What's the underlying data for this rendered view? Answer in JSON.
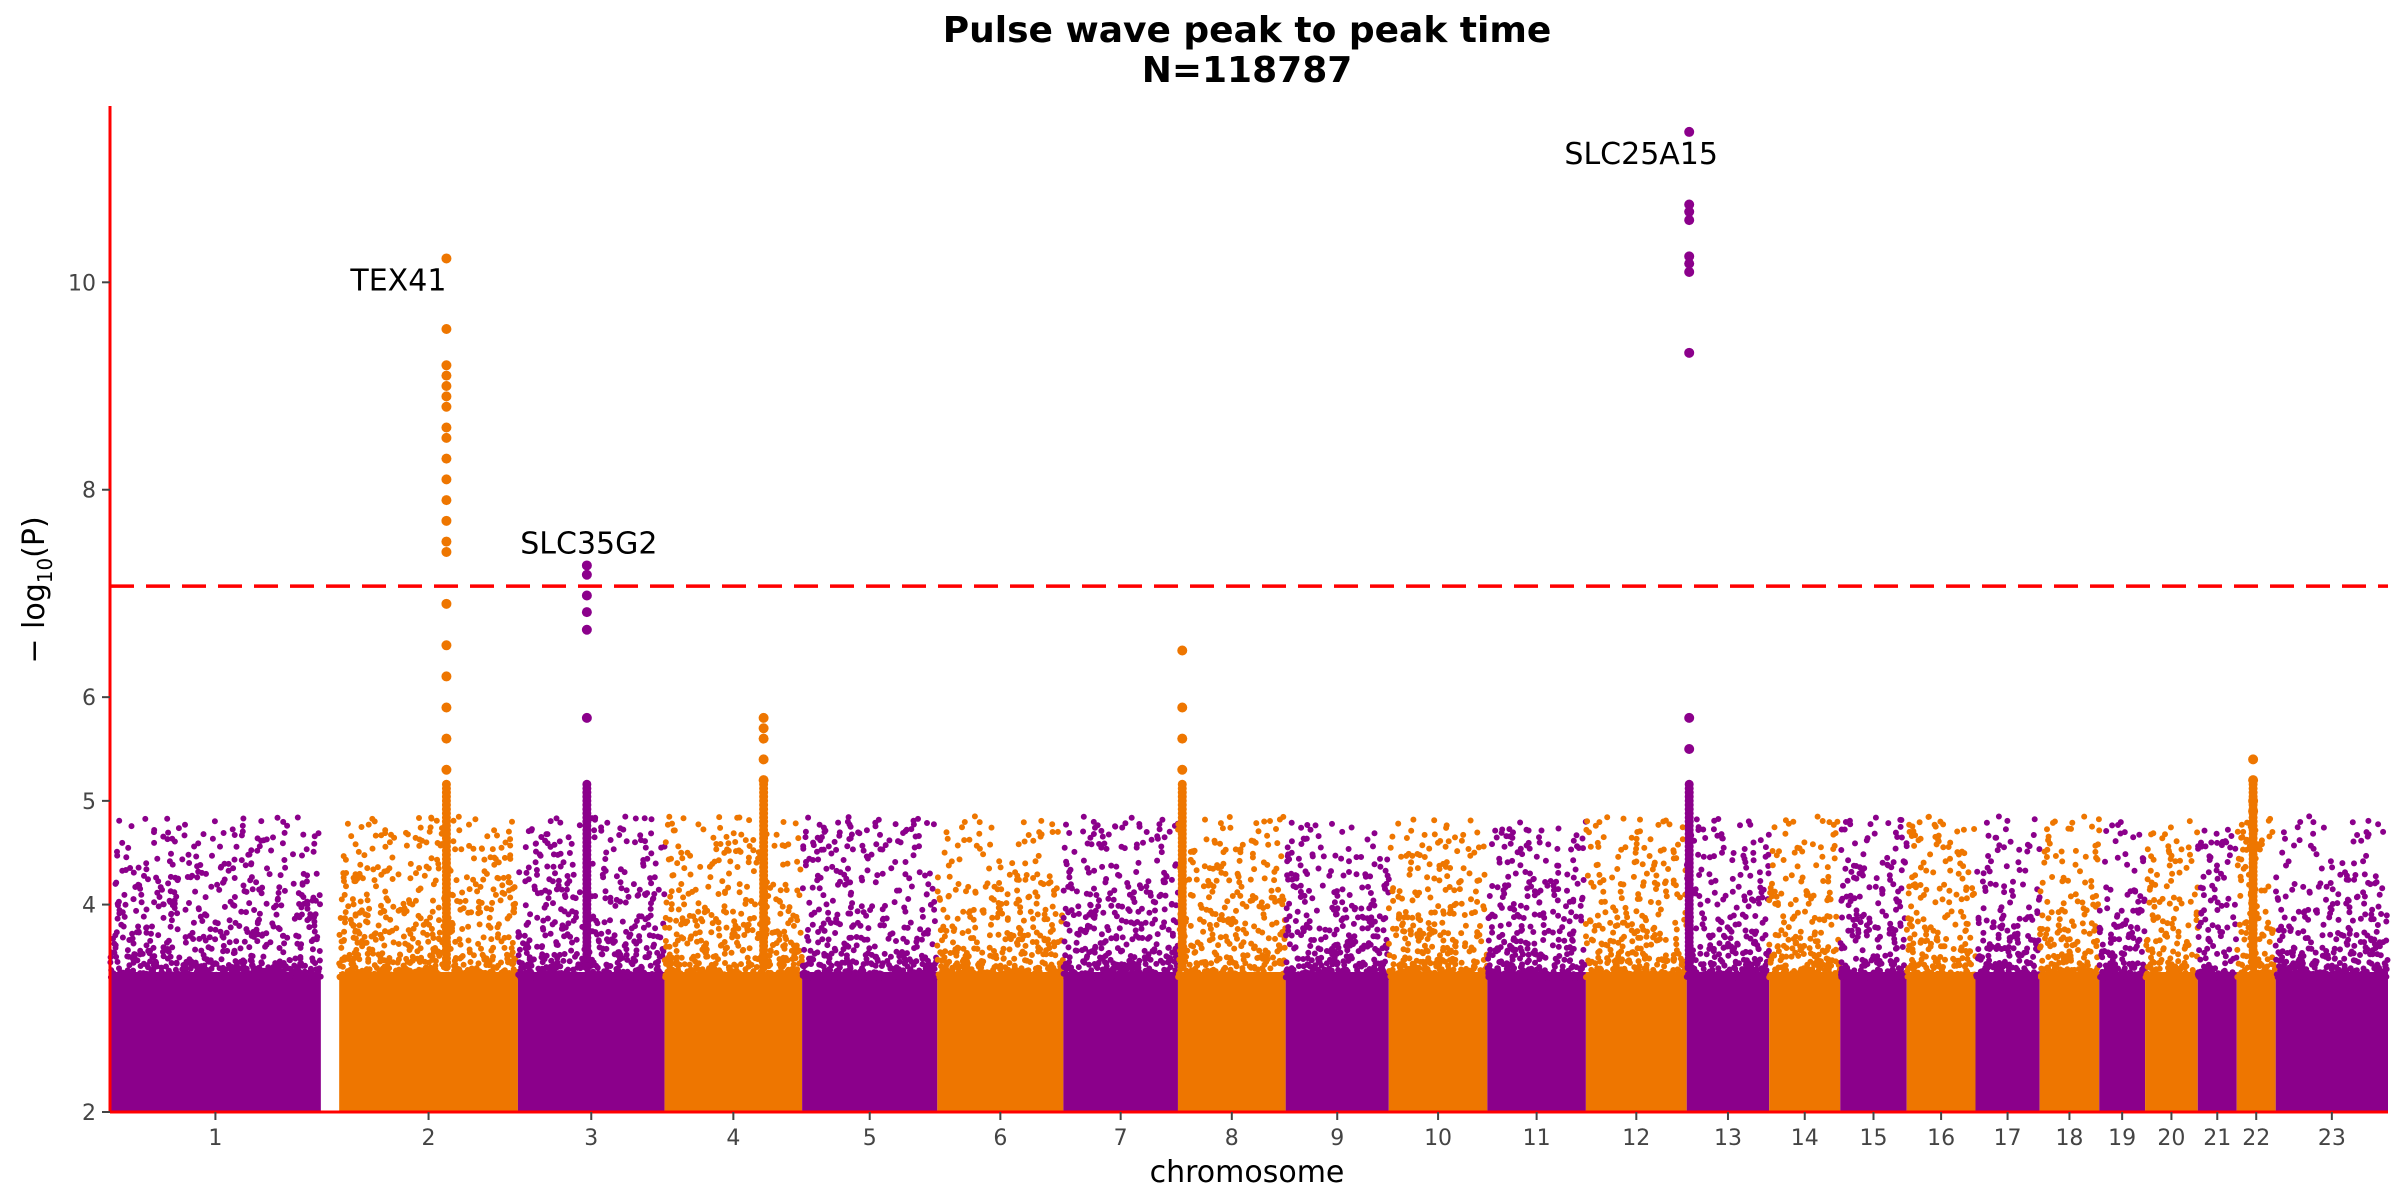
{
  "chart_data": {
    "type": "scatter",
    "subtype": "manhattan",
    "title": "Pulse wave peak to peak time",
    "subtitle": "N=118787",
    "xlabel": "chromosome",
    "ylabel_prefix": "− log",
    "ylabel_sub": "10",
    "ylabel_suffix": "(P)",
    "ylim": [
      2,
      11.7
    ],
    "yticks": [
      2,
      4,
      5,
      6,
      8,
      10
    ],
    "significance_threshold": 7.07,
    "threshold_color": "#ff0000",
    "axis_color": "#ff0000",
    "grid": false,
    "colors": {
      "odd": "#8b008b",
      "even": "#ee7600"
    },
    "chromosomes": [
      {
        "label": "1",
        "start": 0,
        "end": 0.92
      },
      {
        "label": "2",
        "start": 1.0,
        "end": 1.78
      },
      {
        "label": "3",
        "start": 1.78,
        "end": 2.42
      },
      {
        "label": "4",
        "start": 2.42,
        "end": 3.02
      },
      {
        "label": "5",
        "start": 3.02,
        "end": 3.61
      },
      {
        "label": "6",
        "start": 3.61,
        "end": 4.16
      },
      {
        "label": "7",
        "start": 4.16,
        "end": 4.66
      },
      {
        "label": "8",
        "start": 4.66,
        "end": 5.13
      },
      {
        "label": "9",
        "start": 5.13,
        "end": 5.58
      },
      {
        "label": "10",
        "start": 5.58,
        "end": 6.01
      },
      {
        "label": "11",
        "start": 6.01,
        "end": 6.44
      },
      {
        "label": "12",
        "start": 6.44,
        "end": 6.88
      },
      {
        "label": "13",
        "start": 6.88,
        "end": 7.24
      },
      {
        "label": "14",
        "start": 7.24,
        "end": 7.55
      },
      {
        "label": "15",
        "start": 7.55,
        "end": 7.84
      },
      {
        "label": "16",
        "start": 7.84,
        "end": 8.14
      },
      {
        "label": "17",
        "start": 8.14,
        "end": 8.42
      },
      {
        "label": "18",
        "start": 8.42,
        "end": 8.68
      },
      {
        "label": "19",
        "start": 8.68,
        "end": 8.88
      },
      {
        "label": "20",
        "start": 8.88,
        "end": 9.11
      },
      {
        "label": "21",
        "start": 9.11,
        "end": 9.28
      },
      {
        "label": "22",
        "start": 9.28,
        "end": 9.45
      },
      {
        "label": "23",
        "start": 9.45,
        "end": 9.94
      }
    ],
    "peaks": [
      {
        "chrom": "2",
        "pos": 0.6,
        "values": [
          10.23,
          9.55,
          9.2,
          9.1,
          9.0,
          8.9,
          8.8,
          8.6,
          8.5,
          8.3,
          8.1,
          7.9,
          7.7,
          7.5,
          7.4,
          6.9,
          6.5,
          6.2,
          5.9,
          5.6,
          5.3
        ]
      },
      {
        "chrom": "3",
        "pos": 0.47,
        "values": [
          7.27,
          7.18,
          6.98,
          6.82,
          6.65,
          5.8
        ]
      },
      {
        "chrom": "13",
        "pos": 0.03,
        "values": [
          11.45,
          10.75,
          10.68,
          10.6,
          10.25,
          10.18,
          10.1,
          9.32,
          5.8,
          5.5
        ]
      },
      {
        "chrom": "4",
        "pos": 0.72,
        "values": [
          5.8,
          5.7,
          5.6,
          5.4,
          5.2
        ]
      },
      {
        "chrom": "8",
        "pos": 0.04,
        "values": [
          6.45,
          5.9,
          5.6,
          5.3
        ]
      },
      {
        "chrom": "22",
        "pos": 0.42,
        "values": [
          5.4,
          5.2,
          5.0,
          4.9
        ]
      }
    ],
    "annotations": [
      {
        "text": "TEX41",
        "chrom": "2",
        "pos": 0.6,
        "y": 10.23
      },
      {
        "text": "SLC35G2",
        "chrom": "3",
        "pos": 0.47,
        "y": 7.27
      },
      {
        "text": "SLC25A15",
        "chrom": "13",
        "pos": 0.03,
        "y": 11.45
      }
    ]
  }
}
